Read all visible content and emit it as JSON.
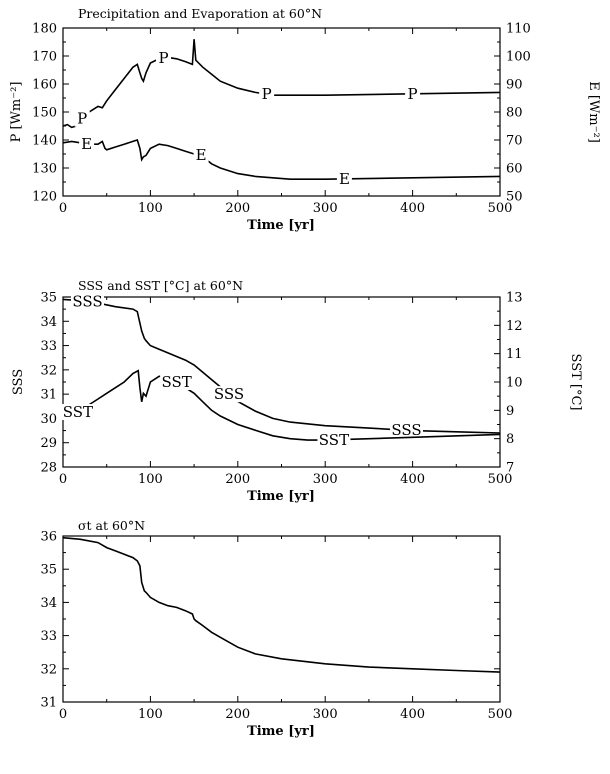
{
  "chart_data": [
    {
      "type": "line",
      "title": "Precipitation and Evaporation at 60°N",
      "xlabel": "Time [yr]",
      "ylabel": "P [Wm⁻²]",
      "ylabel_right": "E [Wm⁻²]",
      "xlim": [
        0,
        500
      ],
      "ylim": [
        120,
        180
      ],
      "ylim_right": [
        50,
        110
      ],
      "xticks": [
        "0",
        "100",
        "200",
        "300",
        "400",
        "500"
      ],
      "yticks": [
        "120",
        "130",
        "140",
        "150",
        "160",
        "170",
        "180"
      ],
      "yticks_right": [
        "50",
        "60",
        "70",
        "80",
        "90",
        "100",
        "110"
      ],
      "series": [
        {
          "name": "P",
          "axis": "left",
          "x": [
            0,
            5,
            10,
            15,
            20,
            30,
            40,
            45,
            50,
            60,
            70,
            80,
            85,
            88,
            90,
            92,
            95,
            100,
            110,
            120,
            130,
            140,
            148,
            150,
            152,
            160,
            170,
            180,
            200,
            220,
            240,
            300,
            400,
            500
          ],
          "y": [
            145,
            145.5,
            144.5,
            145,
            147,
            150,
            152,
            151.5,
            154,
            158,
            162,
            166,
            167,
            164,
            162,
            161,
            164,
            167.5,
            169,
            169.5,
            169,
            168,
            167,
            176,
            168.5,
            166,
            163.5,
            161,
            158.5,
            157,
            156,
            156,
            156.5,
            157
          ],
          "labels": [
            {
              "text": "P",
              "x": 22
            },
            {
              "text": "P",
              "x": 115
            },
            {
              "text": "P",
              "x": 233
            },
            {
              "text": "P",
              "x": 400
            }
          ]
        },
        {
          "name": "E",
          "axis": "right",
          "x": [
            0,
            10,
            20,
            30,
            40,
            45,
            48,
            50,
            60,
            70,
            80,
            85,
            88,
            90,
            92,
            95,
            100,
            110,
            120,
            130,
            140,
            150,
            153,
            160,
            170,
            180,
            200,
            220,
            240,
            260,
            300,
            400,
            500
          ],
          "y": [
            69,
            69.5,
            69,
            68.5,
            68.5,
            69.5,
            67,
            66.5,
            67.5,
            68.5,
            69.5,
            70,
            67,
            63,
            64,
            64.5,
            67,
            68.5,
            68,
            67,
            66,
            65,
            66,
            64,
            61.5,
            60,
            58,
            57,
            56.5,
            56,
            56,
            56.5,
            57
          ],
          "labels": [
            {
              "text": "E",
              "x": 27
            },
            {
              "text": "E",
              "x": 158
            },
            {
              "text": "E",
              "x": 322
            }
          ]
        }
      ]
    },
    {
      "type": "line",
      "title": "SSS and SST [°C] at 60°N",
      "xlabel": "Time [yr]",
      "ylabel": "SSS",
      "ylabel_right": "SST [°C]",
      "xlim": [
        0,
        500
      ],
      "ylim": [
        28,
        35
      ],
      "ylim_right": [
        7,
        13
      ],
      "xticks": [
        "0",
        "100",
        "200",
        "300",
        "400",
        "500"
      ],
      "yticks": [
        "28",
        "29",
        "30",
        "31",
        "32",
        "33",
        "34",
        "35"
      ],
      "yticks_right": [
        "7",
        "8",
        "9",
        "10",
        "11",
        "12",
        "13"
      ],
      "series": [
        {
          "name": "SSS",
          "axis": "left",
          "x": [
            0,
            20,
            40,
            60,
            80,
            85,
            90,
            93,
            95,
            100,
            110,
            120,
            130,
            140,
            150,
            160,
            170,
            180,
            200,
            220,
            240,
            260,
            300,
            350,
            400,
            450,
            500
          ],
          "y": [
            34.9,
            34.85,
            34.75,
            34.6,
            34.5,
            34.4,
            33.6,
            33.3,
            33.2,
            33,
            32.85,
            32.7,
            32.55,
            32.4,
            32.2,
            31.9,
            31.6,
            31.3,
            30.7,
            30.3,
            30.0,
            29.85,
            29.7,
            29.6,
            29.5,
            29.45,
            29.4
          ],
          "labels": [
            {
              "text": "SSS",
              "x": 28
            },
            {
              "text": "SSS",
              "x": 190
            },
            {
              "text": "SSS",
              "x": 393
            }
          ]
        },
        {
          "name": "SST",
          "axis": "right",
          "x": [
            0,
            5,
            10,
            15,
            25,
            40,
            50,
            60,
            70,
            80,
            86,
            88,
            90,
            92,
            95,
            100,
            110,
            120,
            130,
            140,
            150,
            160,
            170,
            180,
            200,
            220,
            240,
            260,
            280,
            300,
            400,
            500
          ],
          "y": [
            8.7,
            8.8,
            8.7,
            8.9,
            9.1,
            9.4,
            9.6,
            9.8,
            10.0,
            10.3,
            10.4,
            9.8,
            9.3,
            9.6,
            9.5,
            10.0,
            10.2,
            10.2,
            10.0,
            9.8,
            9.6,
            9.3,
            9.0,
            8.8,
            8.5,
            8.3,
            8.1,
            8.0,
            7.95,
            7.95,
            8.05,
            8.15
          ],
          "labels": [
            {
              "text": "SST",
              "x": 17
            },
            {
              "text": "SST",
              "x": 130
            },
            {
              "text": "SST",
              "x": 310
            }
          ]
        }
      ]
    },
    {
      "type": "line",
      "title": "σt at 60°N",
      "xlabel": "Time [yr]",
      "ylabel": "",
      "xlim": [
        0,
        500
      ],
      "ylim": [
        31,
        36
      ],
      "xticks": [
        "0",
        "100",
        "200",
        "300",
        "400",
        "500"
      ],
      "yticks": [
        "31",
        "32",
        "33",
        "34",
        "35",
        "36"
      ],
      "series": [
        {
          "name": "σt",
          "axis": "left",
          "x": [
            0,
            20,
            40,
            50,
            60,
            70,
            80,
            85,
            88,
            90,
            93,
            95,
            100,
            110,
            120,
            130,
            140,
            148,
            150,
            152,
            160,
            170,
            180,
            200,
            220,
            250,
            300,
            350,
            400,
            450,
            500
          ],
          "y": [
            35.95,
            35.9,
            35.8,
            35.65,
            35.55,
            35.45,
            35.35,
            35.25,
            35.1,
            34.6,
            34.35,
            34.3,
            34.15,
            34.0,
            33.9,
            33.85,
            33.75,
            33.65,
            33.5,
            33.45,
            33.3,
            33.1,
            32.95,
            32.65,
            32.45,
            32.3,
            32.15,
            32.05,
            32.0,
            31.95,
            31.9
          ]
        }
      ]
    }
  ]
}
